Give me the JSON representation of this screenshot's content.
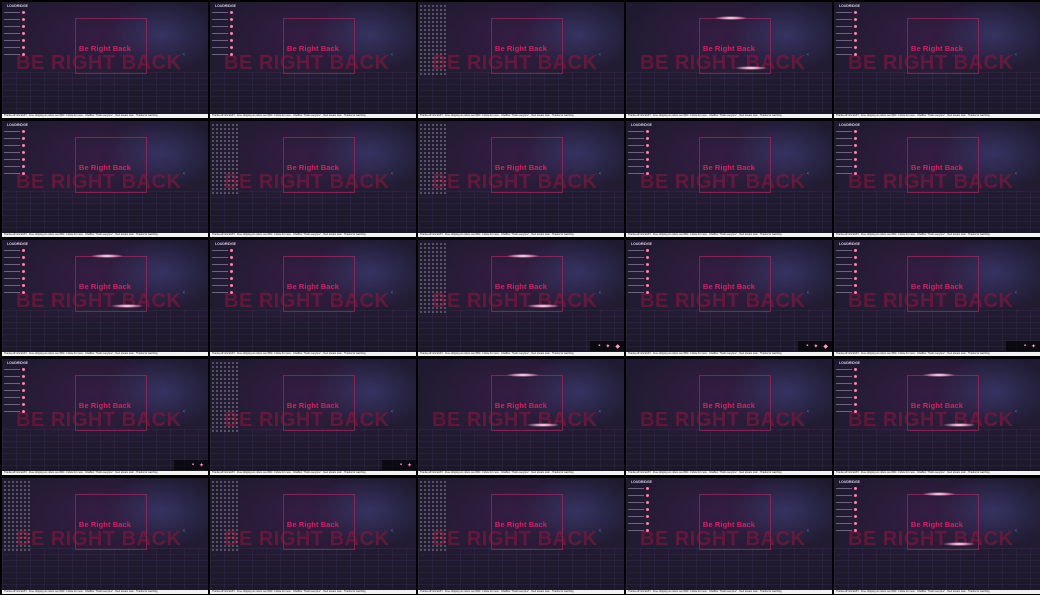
{
  "scene": {
    "headline": "Be Right Back",
    "watermark": "BE RIGHT BACK",
    "overlay_title": "LOUDRIDGE",
    "ticker": "Thanks all! GG EASY · Free shipping on orders over $50 · Follow for more · ChatBox: \"Hello everyone\" · Next stream soon · Thanks for watching",
    "accent_color": "#d0245d",
    "chevron_icon": "‹"
  },
  "cells": [
    {
      "panel": "list",
      "flare": false,
      "widgets": 0
    },
    {
      "panel": "list",
      "flare": false,
      "widgets": 0
    },
    {
      "panel": "sparkle",
      "flare": false,
      "widgets": 0
    },
    {
      "panel": "none",
      "flare": true,
      "widgets": 0
    },
    {
      "panel": "list",
      "flare": false,
      "widgets": 0
    },
    {
      "panel": "list",
      "flare": false,
      "widgets": 0
    },
    {
      "panel": "sparkle",
      "flare": false,
      "widgets": 0
    },
    {
      "panel": "sparkle",
      "flare": false,
      "widgets": 0
    },
    {
      "panel": "list",
      "flare": false,
      "widgets": 0
    },
    {
      "panel": "list",
      "flare": false,
      "widgets": 0
    },
    {
      "panel": "list",
      "flare": true,
      "widgets": 0
    },
    {
      "panel": "list",
      "flare": false,
      "widgets": 0
    },
    {
      "panel": "sparkle",
      "flare": true,
      "widgets": 3
    },
    {
      "panel": "list",
      "flare": false,
      "widgets": 3
    },
    {
      "panel": "list",
      "flare": false,
      "widgets": 2
    },
    {
      "panel": "list",
      "flare": false,
      "widgets": 2
    },
    {
      "panel": "sparkle",
      "flare": false,
      "widgets": 2
    },
    {
      "panel": "none",
      "flare": true,
      "widgets": 0
    },
    {
      "panel": "none",
      "flare": false,
      "widgets": 0
    },
    {
      "panel": "list",
      "flare": true,
      "widgets": 0
    },
    {
      "panel": "sparkle",
      "flare": false,
      "widgets": 0
    },
    {
      "panel": "sparkle",
      "flare": false,
      "widgets": 0
    },
    {
      "panel": "sparkle",
      "flare": false,
      "widgets": 0
    },
    {
      "panel": "list",
      "flare": false,
      "widgets": 0
    },
    {
      "panel": "list",
      "flare": true,
      "widgets": 0
    }
  ]
}
